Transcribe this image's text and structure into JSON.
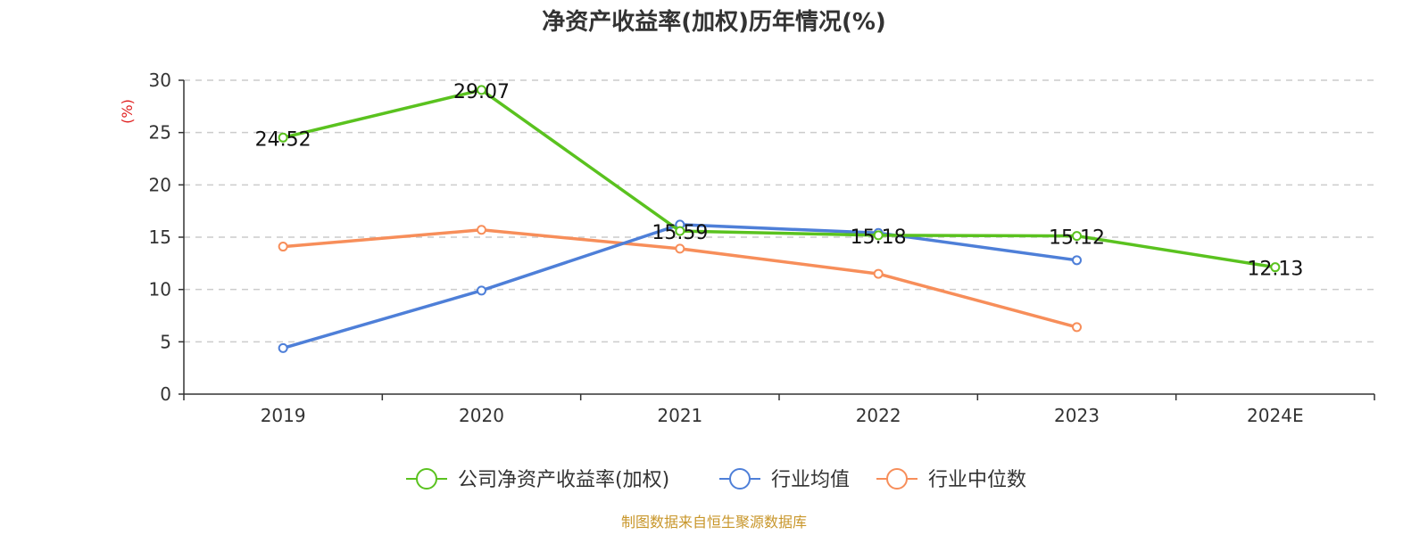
{
  "chart_data": {
    "type": "line",
    "title": "净资产收益率(加权)历年情况(%)",
    "ylabel": "(%)",
    "xlabel": "",
    "categories": [
      "2019",
      "2020",
      "2021",
      "2022",
      "2023",
      "2024E"
    ],
    "ylim": [
      0,
      30
    ],
    "yticks": [
      0,
      5,
      10,
      15,
      20,
      25,
      30
    ],
    "ytick_labels": [
      "0",
      "5",
      "10",
      "15",
      "20",
      "25",
      "30"
    ],
    "grid": true,
    "legend_position": "bottom-center",
    "series": [
      {
        "name": "公司净资产收益率(加权)",
        "color": "#5ac21f",
        "values": [
          24.52,
          29.07,
          15.59,
          15.18,
          15.12,
          12.13
        ],
        "labels": [
          "24.52",
          "29.07",
          "15.59",
          "15.18",
          "15.12",
          "12.13"
        ]
      },
      {
        "name": "行业均值",
        "color": "#4e7fd8",
        "values": [
          4.4,
          9.9,
          16.2,
          15.4,
          12.8,
          null
        ]
      },
      {
        "name": "行业中位数",
        "color": "#f78e5a",
        "values": [
          14.1,
          15.7,
          13.9,
          11.5,
          6.4,
          null
        ]
      }
    ]
  },
  "colors": {
    "ylabel": "#e02020",
    "source": "#c8962a",
    "axis": "#333333",
    "grid": "#cccccc"
  },
  "source": "制图数据来自恒生聚源数据库"
}
